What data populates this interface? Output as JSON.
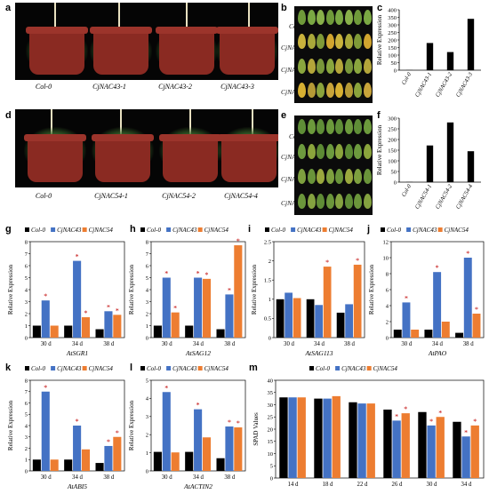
{
  "panel_letters": [
    "a",
    "b",
    "c",
    "d",
    "e",
    "f",
    "g",
    "h",
    "i",
    "j",
    "k",
    "l",
    "m"
  ],
  "panel_a": {
    "plants": [
      "Col-0",
      "CjNAC43-1",
      "CjNAC43-2",
      "CjNAC43-3"
    ]
  },
  "panel_b": {
    "rows": [
      "Col-0",
      "CjNAC43-1",
      "CjNAC43-2",
      "CjNAC43-3"
    ]
  },
  "panel_d": {
    "plants": [
      "Col-0",
      "CjNAC54-1",
      "CjNAC54-2",
      "CjNAC54-4"
    ]
  },
  "panel_e": {
    "rows": [
      "Col-0",
      "CjNAC54-1",
      "CjNAC54-2",
      "CjNAC54-4"
    ]
  },
  "legend": {
    "labels": [
      "Col-0",
      "CjNAC43",
      "CjNAC54"
    ],
    "colors": [
      "#000000",
      "#4472c4",
      "#ed7d31"
    ]
  },
  "chart_data": [
    {
      "panel": "c",
      "type": "bar",
      "categories": [
        "Col-0",
        "CjNAC43-1",
        "CjNAC43-2",
        "CjNAC43-3"
      ],
      "values": [
        1,
        180,
        120,
        340
      ],
      "ylabel": "Relative Expression",
      "ylim": [
        0,
        400
      ],
      "yticks": [
        0,
        50,
        100,
        150,
        200,
        250,
        300,
        350,
        400
      ]
    },
    {
      "panel": "f",
      "type": "bar",
      "categories": [
        "Col-0",
        "CjNAC54-1",
        "CjNAC54-2",
        "CjNAC54-4"
      ],
      "values": [
        1,
        172,
        280,
        145
      ],
      "ylabel": "Relative Expression",
      "ylim": [
        0,
        300
      ],
      "yticks": [
        0,
        50,
        100,
        150,
        200,
        250,
        300
      ]
    },
    {
      "panel": "g",
      "type": "bar",
      "xlabel": "AtSGR1",
      "ylabel": "Relative Expression",
      "categories": [
        "30 d",
        "34 d",
        "38 d"
      ],
      "ylim": [
        0,
        8
      ],
      "yticks": [
        0,
        1,
        2,
        3,
        4,
        5,
        6,
        7,
        8
      ],
      "series": [
        {
          "name": "Col-0",
          "values": [
            1,
            1,
            0.7
          ]
        },
        {
          "name": "CjNAC43",
          "values": [
            3.1,
            6.4,
            2.2
          ]
        },
        {
          "name": "CjNAC54",
          "values": [
            1,
            1.7,
            1.9
          ]
        }
      ],
      "stars": [
        [
          0,
          1
        ],
        [
          1,
          1
        ],
        [
          1,
          2
        ],
        [
          2,
          1
        ],
        [
          2,
          2
        ]
      ]
    },
    {
      "panel": "h",
      "type": "bar",
      "xlabel": "AtSAG12",
      "ylabel": "Relative Expression",
      "categories": [
        "30 d",
        "34 d",
        "38 d"
      ],
      "ylim": [
        0,
        8
      ],
      "yticks": [
        0,
        1,
        2,
        3,
        4,
        5,
        6,
        7,
        8
      ],
      "series": [
        {
          "name": "Col-0",
          "values": [
            1,
            1,
            0.7
          ]
        },
        {
          "name": "CjNAC43",
          "values": [
            5,
            5,
            3.6
          ]
        },
        {
          "name": "CjNAC54",
          "values": [
            2.1,
            4.9,
            7.7
          ]
        }
      ],
      "stars": [
        [
          0,
          1
        ],
        [
          0,
          2
        ],
        [
          1,
          1
        ],
        [
          1,
          2
        ],
        [
          2,
          1
        ],
        [
          2,
          2
        ]
      ]
    },
    {
      "panel": "i",
      "type": "bar",
      "xlabel": "AtSAG113",
      "ylabel": "Relative Expression",
      "categories": [
        "30 d",
        "34 d",
        "38 d"
      ],
      "ylim": [
        0,
        2.5
      ],
      "yticks": [
        0,
        0.5,
        1,
        1.5,
        2,
        2.5
      ],
      "series": [
        {
          "name": "Col-0",
          "values": [
            1,
            1,
            0.65
          ]
        },
        {
          "name": "CjNAC43",
          "values": [
            1.17,
            0.85,
            0.87
          ]
        },
        {
          "name": "CjNAC54",
          "values": [
            1.03,
            1.85,
            1.9
          ]
        }
      ],
      "stars": [
        [
          1,
          2
        ],
        [
          2,
          2
        ]
      ]
    },
    {
      "panel": "j",
      "type": "bar",
      "xlabel": "AtPAO",
      "ylabel": "Relative Expression",
      "categories": [
        "30 d",
        "34 d",
        "38 d"
      ],
      "ylim": [
        0,
        12
      ],
      "yticks": [
        0,
        2,
        4,
        6,
        8,
        10,
        12
      ],
      "series": [
        {
          "name": "Col-0",
          "values": [
            1,
            1,
            0.6
          ]
        },
        {
          "name": "CjNAC43",
          "values": [
            4.4,
            8.2,
            10
          ]
        },
        {
          "name": "CjNAC54",
          "values": [
            1,
            2,
            3
          ]
        }
      ],
      "stars": [
        [
          0,
          1
        ],
        [
          1,
          1
        ],
        [
          2,
          1
        ],
        [
          2,
          2
        ]
      ]
    },
    {
      "panel": "k",
      "type": "bar",
      "xlabel": "AtABI5",
      "ylabel": "Relative Expression",
      "categories": [
        "30 d",
        "34 d",
        "38 d"
      ],
      "ylim": [
        0,
        8
      ],
      "yticks": [
        0,
        1,
        2,
        3,
        4,
        5,
        6,
        7,
        8
      ],
      "series": [
        {
          "name": "Col-0",
          "values": [
            1,
            1,
            0.7
          ]
        },
        {
          "name": "CjNAC43",
          "values": [
            7,
            4,
            2.2
          ]
        },
        {
          "name": "CjNAC54",
          "values": [
            1,
            1.9,
            3
          ]
        }
      ],
      "stars": [
        [
          0,
          1
        ],
        [
          1,
          1
        ],
        [
          2,
          1
        ],
        [
          2,
          2
        ]
      ]
    },
    {
      "panel": "l",
      "type": "bar",
      "xlabel": "AtACTIN2",
      "ylabel": "Relative Expression",
      "categories": [
        "30 d",
        "34 d",
        "38 d"
      ],
      "ylim": [
        0,
        5
      ],
      "yticks": [
        0,
        1,
        2,
        3,
        4,
        5
      ],
      "series": [
        {
          "name": "Col-0",
          "values": [
            1.05,
            1.05,
            0.7
          ]
        },
        {
          "name": "CjNAC43",
          "values": [
            4.35,
            3.4,
            2.45
          ]
        },
        {
          "name": "CjNAC54",
          "values": [
            1.02,
            1.85,
            2.4
          ]
        }
      ],
      "stars": [
        [
          0,
          1
        ],
        [
          1,
          1
        ],
        [
          2,
          1
        ],
        [
          2,
          2
        ]
      ]
    },
    {
      "panel": "m",
      "type": "bar",
      "xlabel": "",
      "ylabel": "SPAD Values",
      "categories": [
        "14 d",
        "18 d",
        "22 d",
        "26 d",
        "30 d",
        "34 d"
      ],
      "ylim": [
        0,
        40
      ],
      "yticks": [
        0,
        5,
        10,
        15,
        20,
        25,
        30,
        35,
        40
      ],
      "series": [
        {
          "name": "Col-0",
          "values": [
            33,
            32.5,
            31,
            28,
            27,
            23
          ]
        },
        {
          "name": "CjNAC43",
          "values": [
            33,
            32.5,
            30.5,
            23.5,
            21.5,
            17
          ]
        },
        {
          "name": "CjNAC54",
          "values": [
            33,
            33.5,
            30.5,
            26.5,
            25,
            21.5
          ]
        }
      ],
      "stars": [
        [
          3,
          1
        ],
        [
          3,
          2
        ],
        [
          4,
          1
        ],
        [
          4,
          2
        ],
        [
          5,
          1
        ],
        [
          5,
          2
        ]
      ]
    }
  ]
}
